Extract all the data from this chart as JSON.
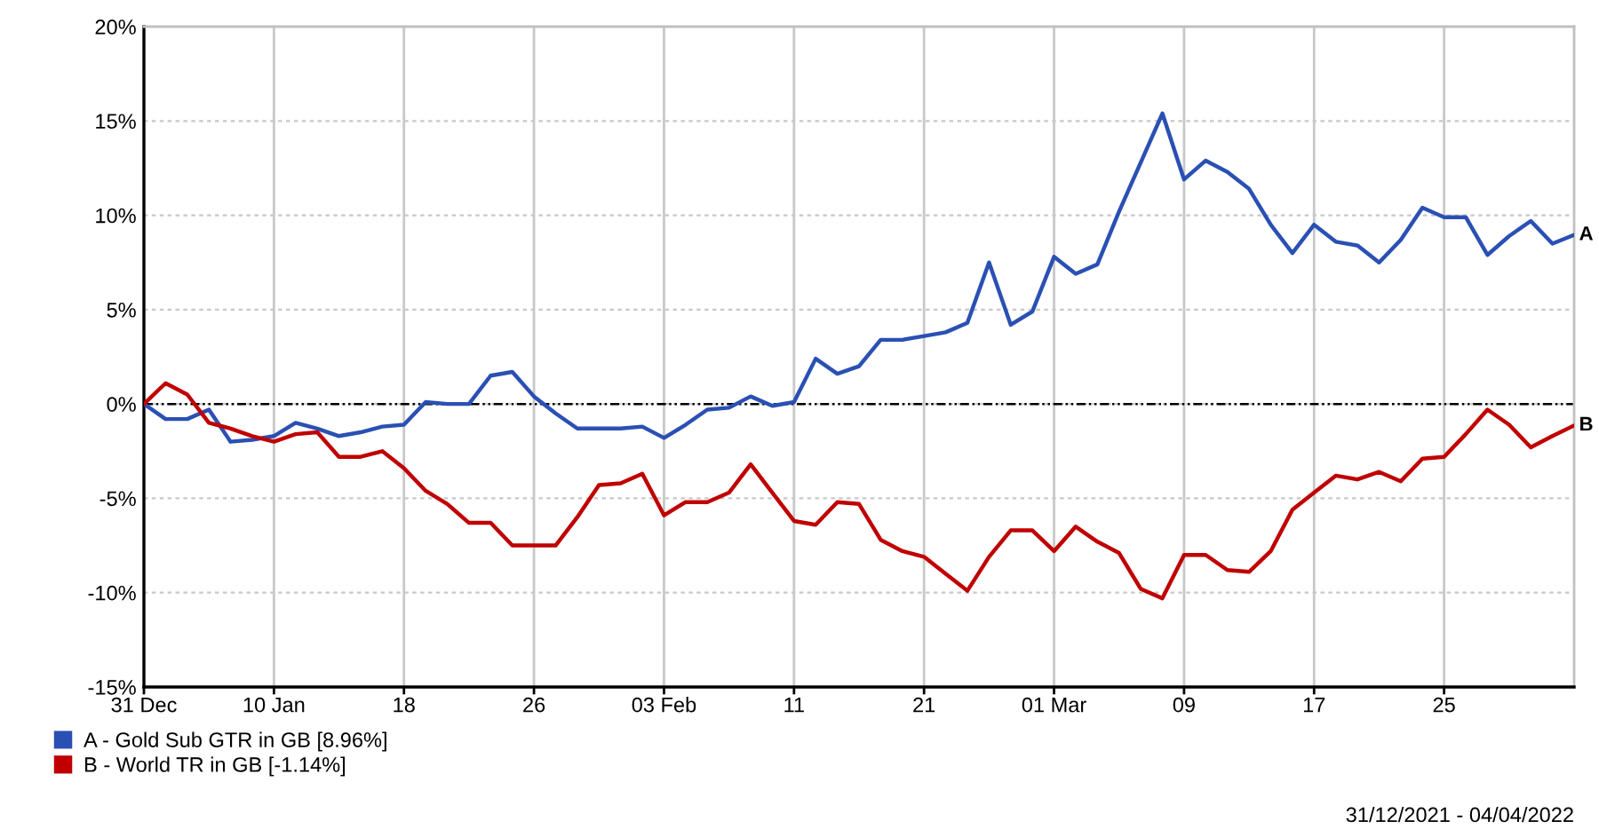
{
  "chart_data": {
    "type": "line",
    "categories": [
      "31 Dec",
      null,
      null,
      null,
      null,
      null,
      "10 Jan",
      null,
      null,
      null,
      null,
      null,
      "18",
      null,
      null,
      null,
      null,
      null,
      "26",
      null,
      null,
      null,
      null,
      null,
      "03 Feb",
      null,
      null,
      null,
      null,
      null,
      "11",
      null,
      null,
      null,
      null,
      null,
      "21",
      null,
      null,
      null,
      null,
      null,
      "01 Mar",
      null,
      null,
      null,
      null,
      null,
      "09",
      null,
      null,
      null,
      null,
      null,
      "17",
      null,
      null,
      null,
      null,
      null,
      "25",
      null,
      null,
      null,
      null,
      null,
      null
    ],
    "series": [
      {
        "name": "A - Gold Sub GTR in GB [8.96%]",
        "color": "#2a50b4",
        "values": [
          0,
          -0.8,
          -0.8,
          -0.3,
          -2.0,
          -1.9,
          -1.7,
          -1.0,
          -1.3,
          -1.7,
          -1.5,
          -1.2,
          -1.1,
          0.1,
          0.0,
          0.0,
          1.5,
          1.7,
          0.4,
          -0.5,
          -1.3,
          -1.3,
          -1.3,
          -1.2,
          -1.8,
          -1.1,
          -0.3,
          -0.2,
          0.4,
          -0.1,
          0.1,
          2.4,
          1.6,
          2.0,
          3.4,
          3.4,
          3.6,
          3.8,
          4.3,
          7.5,
          4.2,
          4.9,
          7.8,
          6.9,
          7.4,
          10.2,
          12.8,
          15.4,
          11.9,
          12.9,
          12.3,
          11.4,
          9.5,
          8.0,
          9.5,
          8.6,
          8.4,
          7.5,
          8.7,
          10.4,
          9.9,
          9.9,
          7.9,
          8.9,
          9.7,
          8.5,
          8.96
        ]
      },
      {
        "name": "B - World TR in GB [-1.14%]",
        "color": "#c00000",
        "values": [
          0,
          1.1,
          0.5,
          -1.0,
          -1.3,
          -1.7,
          -2.0,
          -1.6,
          -1.5,
          -2.8,
          -2.8,
          -2.5,
          -3.4,
          -4.6,
          -5.3,
          -6.3,
          -6.3,
          -7.5,
          -7.5,
          -7.5,
          -6.0,
          -4.3,
          -4.2,
          -3.7,
          -5.9,
          -5.2,
          -5.2,
          -4.7,
          -3.2,
          -4.7,
          -6.2,
          -6.4,
          -5.2,
          -5.3,
          -7.2,
          -7.8,
          -8.1,
          -9.0,
          -9.9,
          -8.1,
          -6.7,
          -6.7,
          -7.8,
          -6.5,
          -7.3,
          -7.9,
          -9.8,
          -10.3,
          -8.0,
          -8.0,
          -8.8,
          -8.9,
          -7.8,
          -5.6,
          -4.7,
          -3.8,
          -4.0,
          -3.6,
          -4.1,
          -2.9,
          -2.8,
          -1.6,
          -0.3,
          -1.1,
          -2.3,
          -1.7,
          -1.14
        ]
      }
    ],
    "ylim": [
      -15,
      20
    ],
    "yticks": [
      {
        "value": -15,
        "label": "-15%"
      },
      {
        "value": -10,
        "label": "-10%"
      },
      {
        "value": -5,
        "label": "-5%"
      },
      {
        "value": 0,
        "label": "0%"
      },
      {
        "value": 5,
        "label": "5%"
      },
      {
        "value": 10,
        "label": "10%"
      },
      {
        "value": 15,
        "label": "15%"
      },
      {
        "value": 20,
        "label": "20%"
      }
    ],
    "ref_lines": [
      {
        "axis": "y",
        "value": 0,
        "color": "#000000",
        "line_style": "dashed"
      }
    ],
    "annotations": [
      "A",
      "B",
      "31/12/2021 - 04/04/2022"
    ],
    "grid": true,
    "legend": "bottom left",
    "marker": "none",
    "line_style": "solid"
  }
}
